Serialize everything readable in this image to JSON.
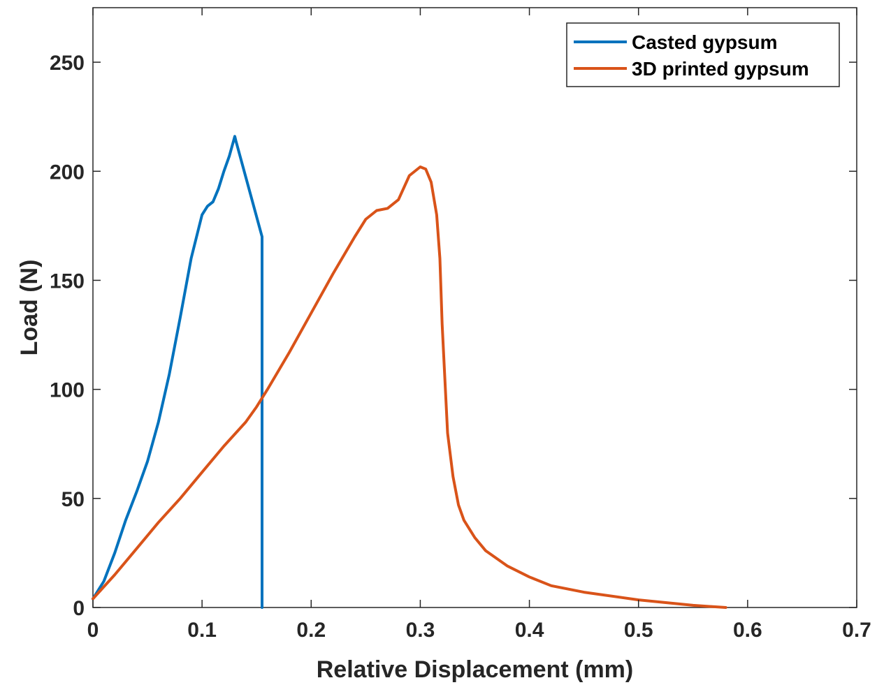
{
  "chart_data": {
    "type": "line",
    "title": "",
    "xlabel": "Relative Displacement (mm)",
    "ylabel": "Load (N)",
    "xlim": [
      0,
      0.7
    ],
    "ylim": [
      0,
      275
    ],
    "xticks": [
      0,
      0.1,
      0.2,
      0.3,
      0.4,
      0.5,
      0.6,
      0.7
    ],
    "xtick_labels": [
      "0",
      "0.1",
      "0.2",
      "0.3",
      "0.4",
      "0.5",
      "0.6",
      "0.7"
    ],
    "yticks": [
      0,
      50,
      100,
      150,
      200,
      250
    ],
    "ytick_labels": [
      "0",
      "50",
      "100",
      "150",
      "200",
      "250"
    ],
    "grid": false,
    "legend_position": "top-right",
    "series": [
      {
        "name": "Casted gypsum",
        "color": "#0072BD",
        "x": [
          0,
          0.01,
          0.02,
          0.03,
          0.04,
          0.05,
          0.06,
          0.07,
          0.08,
          0.09,
          0.1,
          0.105,
          0.11,
          0.115,
          0.12,
          0.125,
          0.13,
          0.131,
          0.155,
          0.155
        ],
        "y": [
          4,
          12,
          25,
          40,
          53,
          67,
          85,
          107,
          133,
          160,
          180,
          184,
          186,
          192,
          200,
          207,
          216,
          214,
          170,
          0
        ]
      },
      {
        "name": "3D printed gypsum",
        "color": "#D95319",
        "x": [
          0,
          0.02,
          0.04,
          0.06,
          0.08,
          0.1,
          0.12,
          0.14,
          0.15,
          0.16,
          0.18,
          0.2,
          0.22,
          0.24,
          0.25,
          0.26,
          0.27,
          0.28,
          0.29,
          0.3,
          0.305,
          0.31,
          0.315,
          0.318,
          0.32,
          0.322,
          0.325,
          0.33,
          0.335,
          0.34,
          0.35,
          0.36,
          0.38,
          0.4,
          0.42,
          0.45,
          0.5,
          0.55,
          0.58
        ],
        "y": [
          4,
          15,
          27,
          39,
          50,
          62,
          74,
          85,
          92,
          100,
          117,
          135,
          153,
          170,
          178,
          182,
          183,
          187,
          198,
          202,
          201,
          195,
          180,
          160,
          130,
          110,
          80,
          60,
          47,
          40,
          32,
          26,
          19,
          14,
          10,
          7,
          3.5,
          1,
          0
        ]
      }
    ]
  }
}
